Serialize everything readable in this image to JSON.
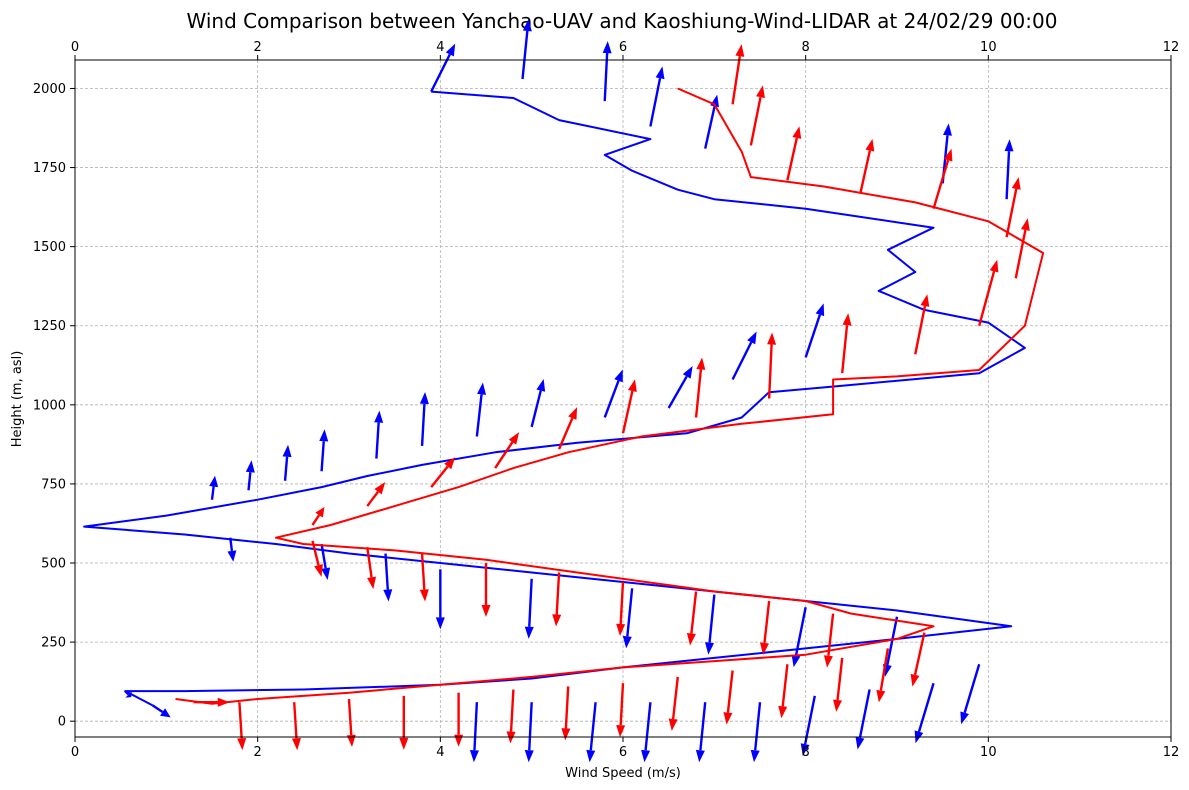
{
  "chart_data": {
    "type": "line",
    "title": "Wind Comparison between Yanchao-UAV and Kaoshiung-Wind-LIDAR at 24/02/29 00:00",
    "xlabel": "Wind Speed (m/s)",
    "ylabel": "Height (m, asl)",
    "xlim": [
      0,
      12
    ],
    "ylim": [
      -50,
      2090
    ],
    "x_ticks": [
      0,
      2,
      4,
      6,
      8,
      10,
      12
    ],
    "y_ticks": [
      0,
      250,
      500,
      750,
      1000,
      1250,
      1500,
      1750,
      2000
    ],
    "grid": true,
    "top_axis_ticks": true,
    "series": [
      {
        "color": "#0000ff",
        "points": [
          [
            0.85,
            50
          ],
          [
            0.55,
            95
          ],
          [
            1.2,
            95
          ],
          [
            2.5,
            100
          ],
          [
            4.0,
            115
          ],
          [
            5.0,
            135
          ],
          [
            6.0,
            170
          ],
          [
            7.0,
            200
          ],
          [
            8.0,
            230
          ],
          [
            9.0,
            260
          ],
          [
            10.25,
            300
          ],
          [
            9.0,
            350
          ],
          [
            8.0,
            380
          ],
          [
            7.0,
            410
          ],
          [
            6.0,
            440
          ],
          [
            5.0,
            470
          ],
          [
            4.0,
            500
          ],
          [
            3.0,
            530
          ],
          [
            2.2,
            560
          ],
          [
            1.2,
            590
          ],
          [
            0.1,
            615
          ],
          [
            1.0,
            650
          ],
          [
            2.0,
            700
          ],
          [
            2.7,
            740
          ],
          [
            3.2,
            775
          ],
          [
            3.8,
            810
          ],
          [
            4.6,
            850
          ],
          [
            5.5,
            880
          ],
          [
            6.7,
            910
          ],
          [
            7.3,
            960
          ],
          [
            7.6,
            1040
          ],
          [
            8.4,
            1060
          ],
          [
            9.9,
            1100
          ],
          [
            10.4,
            1180
          ],
          [
            10.0,
            1260
          ],
          [
            9.3,
            1300
          ],
          [
            8.8,
            1360
          ],
          [
            9.2,
            1420
          ],
          [
            8.9,
            1490
          ],
          [
            9.4,
            1560
          ],
          [
            8.0,
            1620
          ],
          [
            7.0,
            1650
          ],
          [
            6.6,
            1680
          ],
          [
            6.1,
            1740
          ],
          [
            5.8,
            1790
          ],
          [
            6.3,
            1840
          ],
          [
            5.3,
            1900
          ],
          [
            4.8,
            1970
          ],
          [
            3.9,
            1990
          ]
        ],
        "arrows": [
          [
            0.85,
            50,
            0.3,
            -0.2
          ],
          [
            0.55,
            95,
            0.1,
            -0.1
          ],
          [
            1.5,
            700,
            0.05,
            0.4
          ],
          [
            1.9,
            730,
            0.05,
            0.5
          ],
          [
            2.3,
            760,
            0.05,
            0.6
          ],
          [
            2.7,
            790,
            0.05,
            0.7
          ],
          [
            3.3,
            830,
            0.05,
            0.8
          ],
          [
            3.8,
            870,
            0.05,
            0.9
          ],
          [
            4.4,
            900,
            0.1,
            0.9
          ],
          [
            5.0,
            930,
            0.2,
            0.8
          ],
          [
            5.8,
            960,
            0.3,
            0.8
          ],
          [
            6.5,
            990,
            0.4,
            0.7
          ],
          [
            7.2,
            1080,
            0.4,
            0.8
          ],
          [
            8.0,
            1150,
            0.3,
            0.9
          ],
          [
            9.5,
            1700,
            0.1,
            1.0
          ],
          [
            10.2,
            1650,
            0.05,
            1.0
          ],
          [
            6.9,
            1810,
            0.2,
            0.9
          ],
          [
            6.3,
            1880,
            0.2,
            1.0
          ],
          [
            5.8,
            1960,
            0.05,
            1.0
          ],
          [
            4.9,
            2030,
            0.1,
            1.0
          ],
          [
            3.9,
            1990,
            0.4,
            0.8
          ],
          [
            4.4,
            60,
            -0.05,
            -1.0
          ],
          [
            5.0,
            60,
            -0.05,
            -1.0
          ],
          [
            5.7,
            60,
            -0.1,
            -1.0
          ],
          [
            6.3,
            60,
            -0.1,
            -1.0
          ],
          [
            6.9,
            60,
            -0.1,
            -1.0
          ],
          [
            7.5,
            60,
            -0.1,
            -1.0
          ],
          [
            8.1,
            80,
            -0.2,
            -1.0
          ],
          [
            8.7,
            100,
            -0.2,
            -1.0
          ],
          [
            9.4,
            120,
            -0.3,
            -1.0
          ],
          [
            9.9,
            180,
            -0.3,
            -1.0
          ],
          [
            9.0,
            330,
            -0.2,
            -1.0
          ],
          [
            8.0,
            360,
            -0.2,
            -1.0
          ],
          [
            7.0,
            400,
            -0.1,
            -1.0
          ],
          [
            6.1,
            420,
            -0.1,
            -1.0
          ],
          [
            5.0,
            450,
            -0.05,
            -1.0
          ],
          [
            4.0,
            480,
            0.0,
            -1.0
          ],
          [
            3.4,
            530,
            0.05,
            -0.8
          ],
          [
            2.7,
            560,
            0.1,
            -0.6
          ],
          [
            1.7,
            580,
            0.05,
            -0.4
          ]
        ]
      },
      {
        "color": "#ff0000",
        "points": [
          [
            1.1,
            70
          ],
          [
            1.5,
            55
          ],
          [
            2.0,
            70
          ],
          [
            3.0,
            90
          ],
          [
            4.0,
            115
          ],
          [
            5.0,
            140
          ],
          [
            6.0,
            170
          ],
          [
            7.0,
            190
          ],
          [
            8.0,
            210
          ],
          [
            9.0,
            260
          ],
          [
            9.4,
            300
          ],
          [
            8.5,
            340
          ],
          [
            8.0,
            380
          ],
          [
            7.0,
            410
          ],
          [
            6.5,
            430
          ],
          [
            5.5,
            470
          ],
          [
            4.5,
            510
          ],
          [
            3.5,
            540
          ],
          [
            2.5,
            560
          ],
          [
            2.2,
            580
          ],
          [
            2.8,
            620
          ],
          [
            3.5,
            680
          ],
          [
            4.2,
            740
          ],
          [
            4.8,
            800
          ],
          [
            5.4,
            850
          ],
          [
            6.2,
            900
          ],
          [
            7.3,
            940
          ],
          [
            8.3,
            970
          ],
          [
            8.3,
            1080
          ],
          [
            9.0,
            1090
          ],
          [
            9.9,
            1110
          ],
          [
            10.4,
            1250
          ],
          [
            10.6,
            1480
          ],
          [
            10.0,
            1580
          ],
          [
            9.2,
            1640
          ],
          [
            8.2,
            1690
          ],
          [
            7.4,
            1720
          ],
          [
            7.3,
            1800
          ],
          [
            7.0,
            1950
          ],
          [
            6.6,
            2000
          ]
        ],
        "arrows": [
          [
            1.3,
            60,
            0.6,
            0.0
          ],
          [
            1.8,
            60,
            0.05,
            -0.8
          ],
          [
            2.4,
            60,
            0.05,
            -0.8
          ],
          [
            3.0,
            70,
            0.05,
            -0.8
          ],
          [
            3.6,
            80,
            0.0,
            -0.9
          ],
          [
            4.2,
            90,
            0.0,
            -0.9
          ],
          [
            4.8,
            100,
            -0.05,
            -0.9
          ],
          [
            5.4,
            110,
            -0.05,
            -0.9
          ],
          [
            6.0,
            120,
            -0.05,
            -0.9
          ],
          [
            6.6,
            140,
            -0.1,
            -0.9
          ],
          [
            7.2,
            160,
            -0.1,
            -0.9
          ],
          [
            7.8,
            180,
            -0.1,
            -0.9
          ],
          [
            8.4,
            200,
            -0.1,
            -0.9
          ],
          [
            8.9,
            230,
            -0.15,
            -0.9
          ],
          [
            9.3,
            280,
            -0.2,
            -0.9
          ],
          [
            8.3,
            340,
            -0.1,
            -0.9
          ],
          [
            7.6,
            380,
            -0.1,
            -0.9
          ],
          [
            6.8,
            410,
            -0.1,
            -0.9
          ],
          [
            6.0,
            440,
            -0.05,
            -0.9
          ],
          [
            5.3,
            470,
            -0.05,
            -0.9
          ],
          [
            4.5,
            500,
            0.0,
            -0.9
          ],
          [
            3.8,
            530,
            0.05,
            -0.8
          ],
          [
            3.2,
            550,
            0.1,
            -0.7
          ],
          [
            2.6,
            570,
            0.15,
            -0.6
          ],
          [
            2.6,
            620,
            0.2,
            0.3
          ],
          [
            3.2,
            680,
            0.3,
            0.4
          ],
          [
            3.9,
            740,
            0.4,
            0.5
          ],
          [
            4.6,
            800,
            0.4,
            0.6
          ],
          [
            5.3,
            860,
            0.3,
            0.7
          ],
          [
            6.0,
            910,
            0.2,
            0.9
          ],
          [
            6.8,
            960,
            0.1,
            1.0
          ],
          [
            7.6,
            1020,
            0.05,
            1.1
          ],
          [
            8.4,
            1100,
            0.1,
            1.0
          ],
          [
            9.2,
            1160,
            0.2,
            1.0
          ],
          [
            9.9,
            1250,
            0.3,
            1.1
          ],
          [
            10.3,
            1400,
            0.2,
            1.0
          ],
          [
            10.2,
            1530,
            0.2,
            1.0
          ],
          [
            9.4,
            1620,
            0.3,
            1.0
          ],
          [
            8.6,
            1670,
            0.2,
            0.9
          ],
          [
            7.8,
            1710,
            0.2,
            0.9
          ],
          [
            7.4,
            1820,
            0.2,
            1.0
          ],
          [
            7.2,
            1950,
            0.15,
            1.0
          ]
        ]
      }
    ]
  }
}
